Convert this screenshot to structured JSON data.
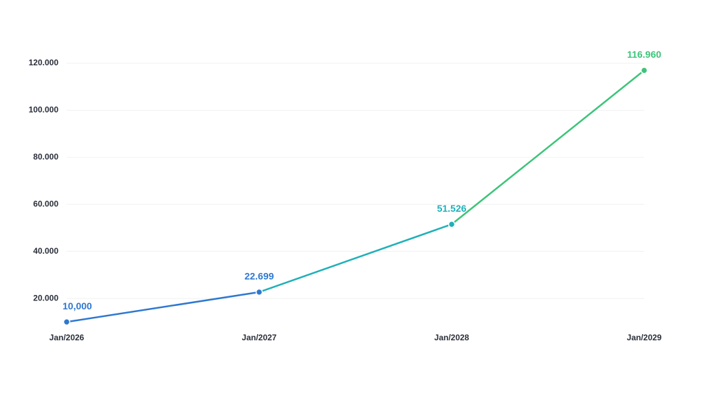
{
  "chart_data": {
    "type": "line",
    "categories": [
      "Jan/2026",
      "Jan/2027",
      "Jan/2028",
      "Jan/2029"
    ],
    "series": [
      {
        "values": [
          10000,
          22699,
          51526,
          116960
        ],
        "value_labels": [
          "10,000",
          "22.699",
          "51.526",
          "116.960"
        ],
        "colors": [
          "#2f78d0",
          "#2f78d0",
          "#1fb0b8",
          "#3cc47a"
        ]
      }
    ],
    "ylim": [
      9500,
      120000
    ],
    "yticks": [
      {
        "value": 20000,
        "label": "20.000"
      },
      {
        "value": 40000,
        "label": "40.000"
      },
      {
        "value": 60000,
        "label": "60.000"
      },
      {
        "value": 80000,
        "label": "80.000"
      },
      {
        "value": 100000,
        "label": "100.000"
      },
      {
        "value": 120000,
        "label": "120.000"
      }
    ],
    "grid": true
  }
}
